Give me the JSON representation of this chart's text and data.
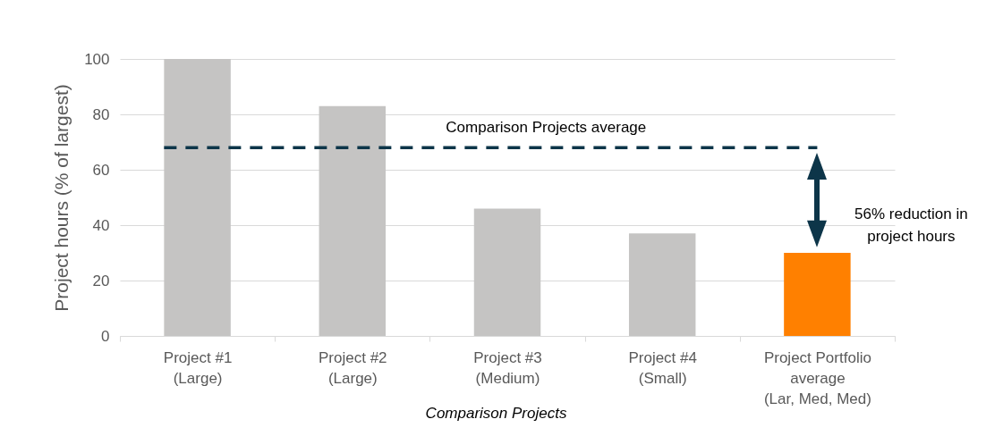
{
  "chart_data": {
    "type": "bar",
    "ylabel": "Project hours (% of largest)",
    "xlabel": "Comparison Projects",
    "categories": [
      "Project #1\n(Large)",
      "Project #2\n(Large)",
      "Project #3\n(Medium)",
      "Project #4\n(Small)",
      "Project Portfolio\naverage\n(Lar, Med, Med)"
    ],
    "values": [
      100,
      83,
      46,
      37,
      30
    ],
    "colors": [
      "#c5c4c3",
      "#c5c4c3",
      "#c5c4c3",
      "#c5c4c3",
      "#ff8000"
    ],
    "ylim": [
      0,
      100
    ],
    "yticks": [
      0,
      20,
      40,
      60,
      80,
      100
    ],
    "grid": "y",
    "ref_lines": [
      {
        "axis": "y",
        "value": 68,
        "label": "Comparison Projects average",
        "color": "#0d3549",
        "line_style": "dashed"
      }
    ],
    "annotations": [
      "56% reduction in project hours"
    ]
  }
}
